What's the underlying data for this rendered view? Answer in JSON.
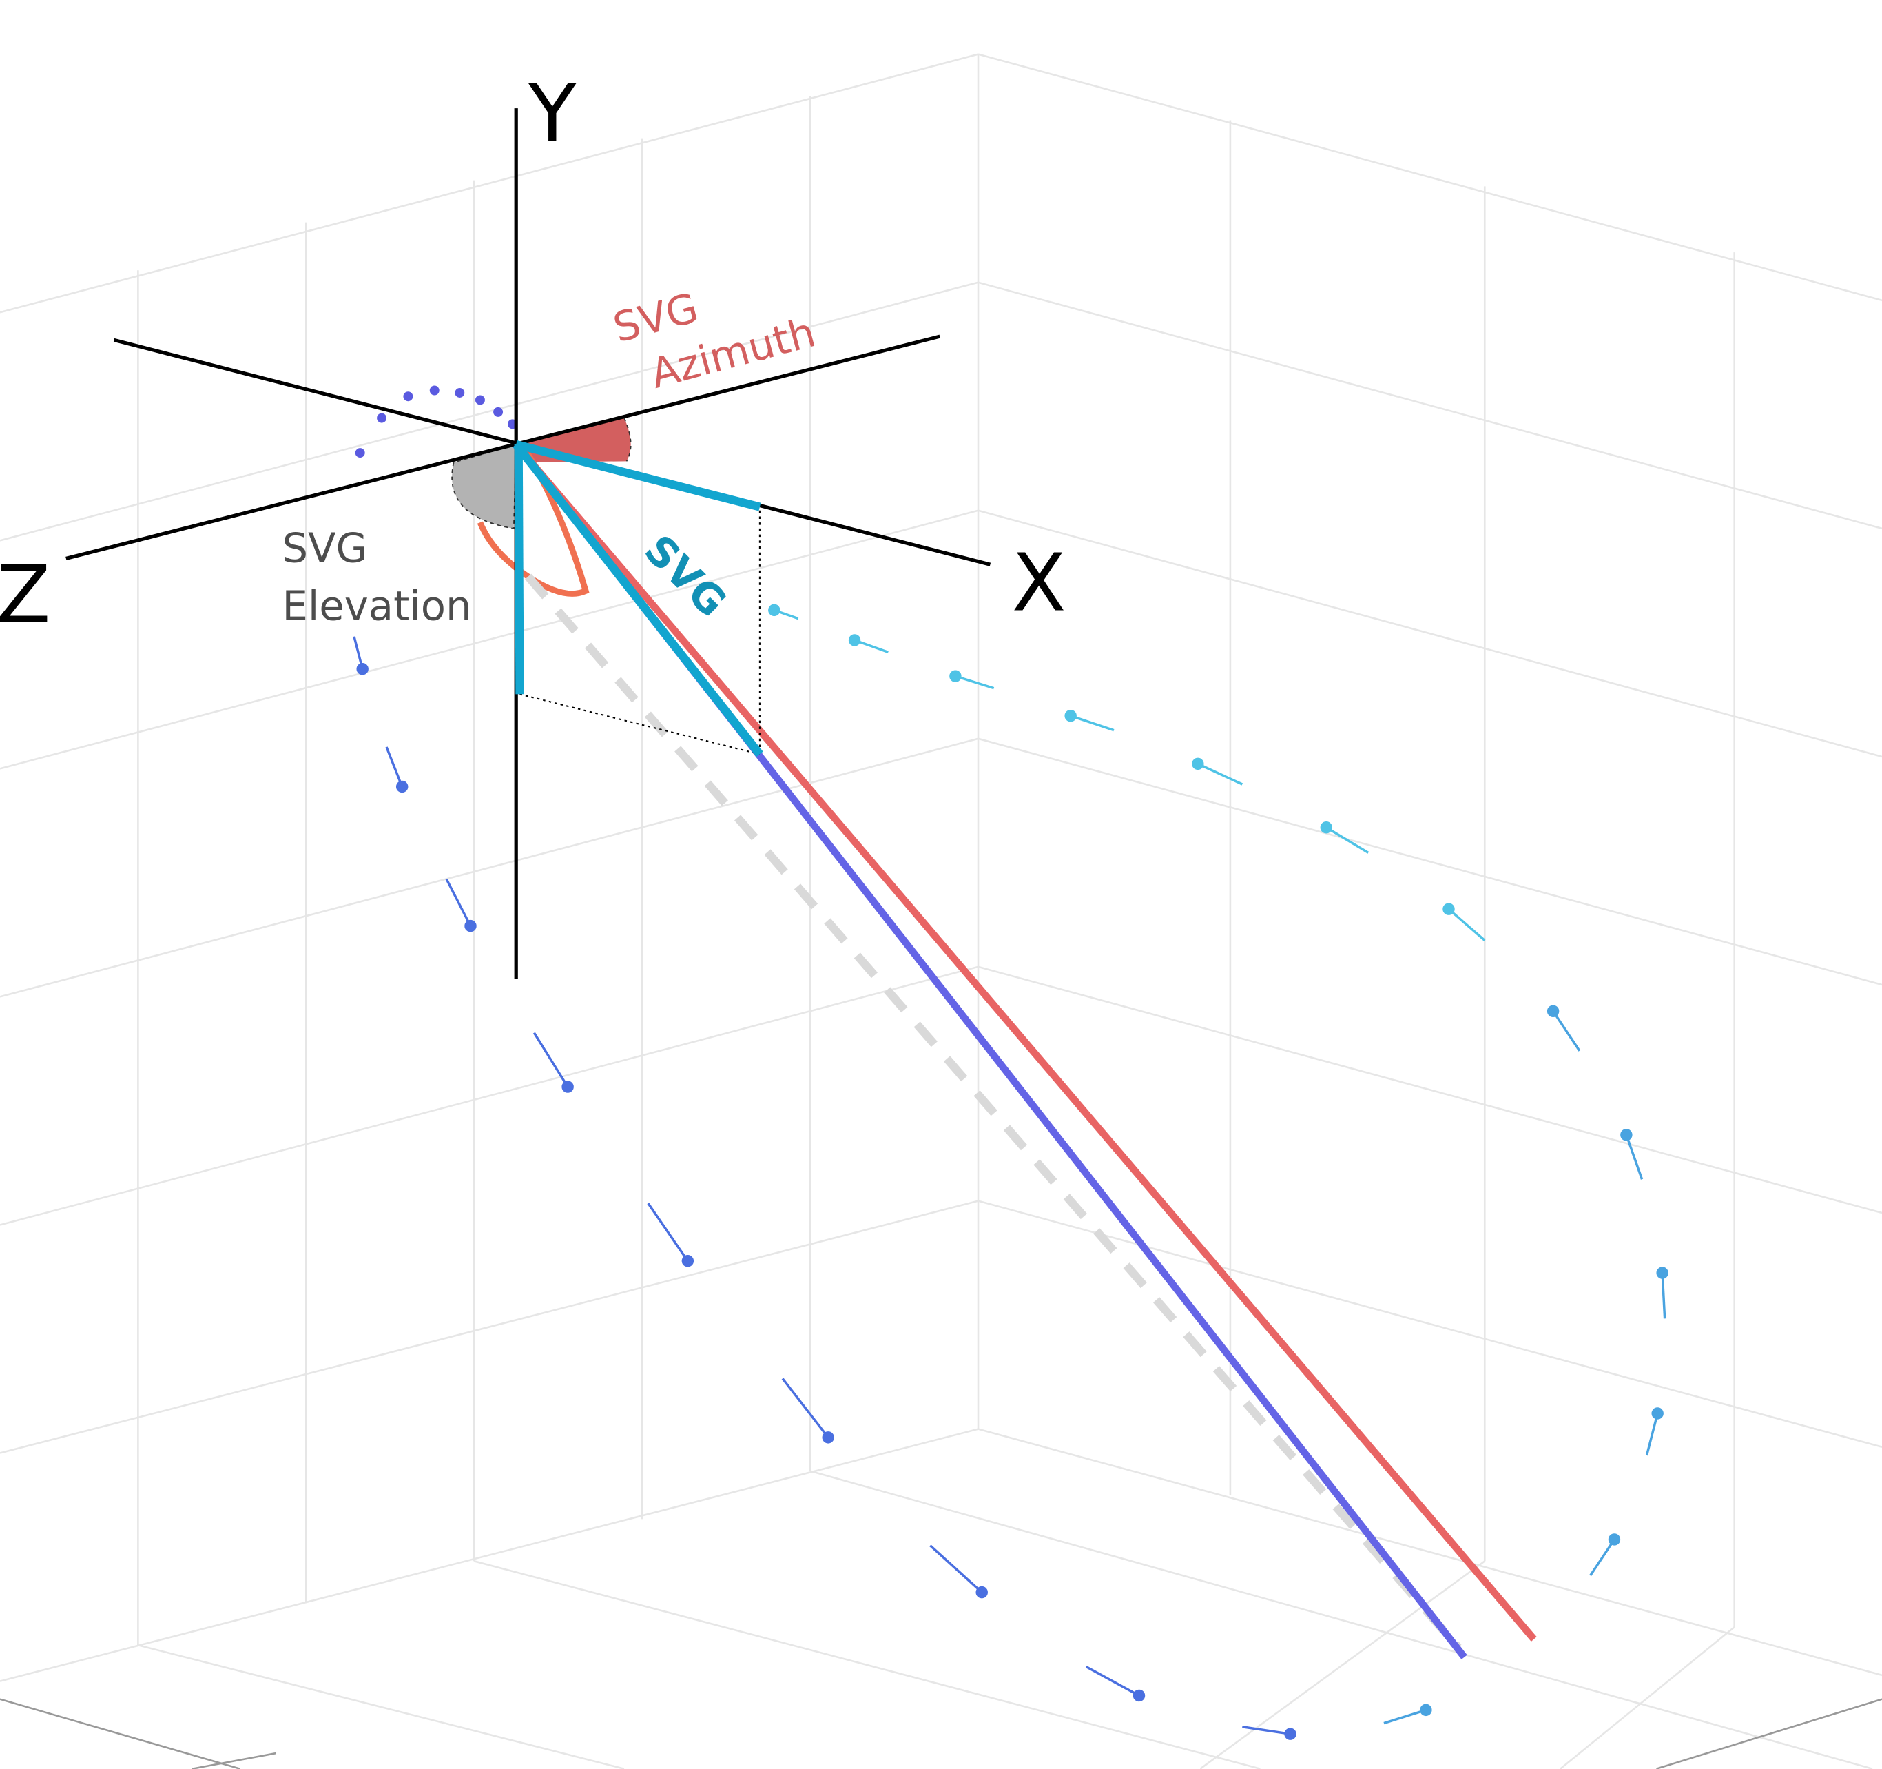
{
  "axes": {
    "x": "X",
    "y": "Y",
    "z": "Z"
  },
  "labels": {
    "azimuth": [
      "SVG",
      "Azimuth"
    ],
    "elevation": [
      "SVG",
      "Elevation"
    ],
    "vector": "SVG"
  }
}
